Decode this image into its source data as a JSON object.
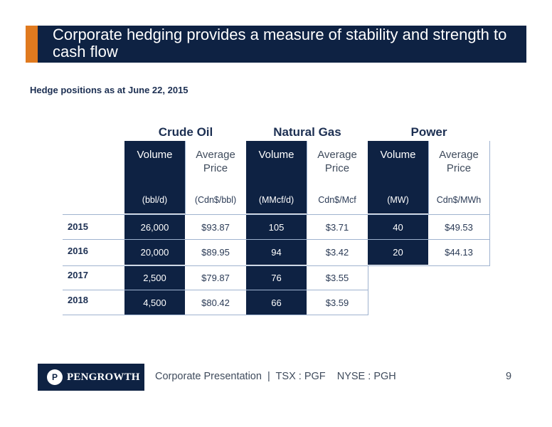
{
  "header": {
    "title": "Corporate hedging provides a measure of  stability and strength  to cash flow"
  },
  "subtitle": "Hedge positions as at June 22, 2015",
  "table": {
    "groups": [
      "Crude Oil",
      "Natural Gas",
      "Power"
    ],
    "columns": [
      {
        "label": "Volume",
        "unit": "(bbl/d)"
      },
      {
        "label": "Average Price",
        "unit": "(Cdn$/bbl)"
      },
      {
        "label": "Volume",
        "unit": "(MMcf/d)"
      },
      {
        "label": "Average Price",
        "unit": "Cdn$/Mcf"
      },
      {
        "label": "Volume",
        "unit": "(MW)"
      },
      {
        "label": "Average Price",
        "unit": "Cdn$/MWh"
      }
    ],
    "rows": [
      {
        "year": "2015",
        "values": [
          "26,000",
          "$93.87",
          "105",
          "$3.71",
          "40",
          "$49.53"
        ]
      },
      {
        "year": "2016",
        "values": [
          "20,000",
          "$89.95",
          "94",
          "$3.42",
          "20",
          "$44.13"
        ]
      },
      {
        "year": "2017",
        "values": [
          "2,500",
          "$79.87",
          "76",
          "$3.55"
        ]
      },
      {
        "year": "2018",
        "values": [
          "4,500",
          "$80.42",
          "66",
          "$3.59"
        ]
      }
    ]
  },
  "footer": {
    "logo_text": "PENGROWTH",
    "logo_mark": "P",
    "text": "Corporate Presentation  |  TSX : PGF    NYSE : PGH",
    "page_number": "9"
  },
  "colors": {
    "navy": "#0e2243",
    "accent": "#e07a1f"
  }
}
